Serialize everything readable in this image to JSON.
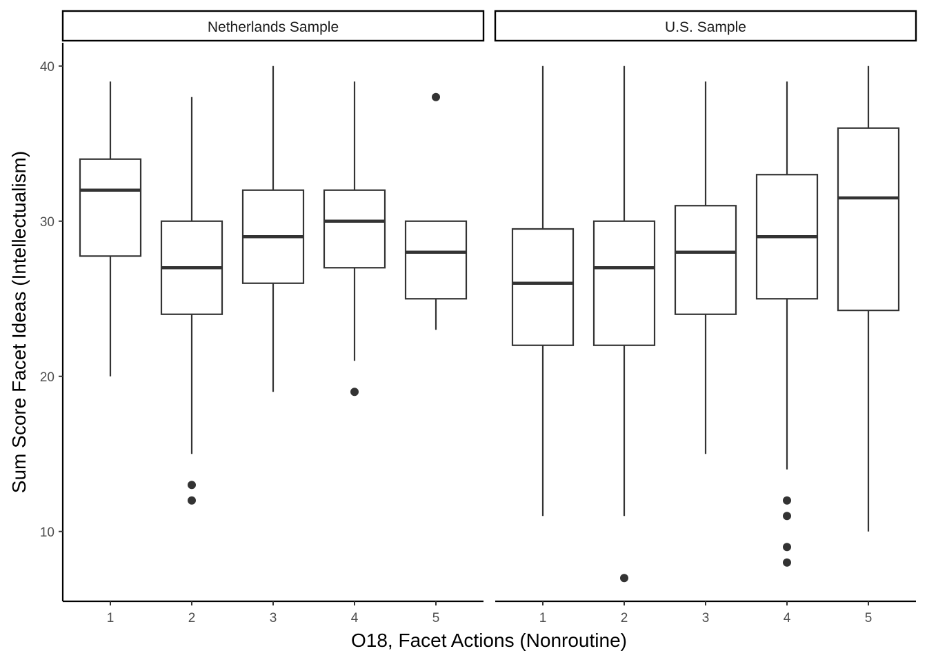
{
  "chart_data": {
    "type": "box",
    "xlabel": "O18, Facet Actions (Nonroutine)",
    "ylabel": "Sum Score Facet Ideas (Intellectualism)",
    "ylim": [
      5.5,
      41.5
    ],
    "yticks": [
      10,
      20,
      30,
      40
    ],
    "categories": [
      "1",
      "2",
      "3",
      "4",
      "5"
    ],
    "grid": false,
    "legend": "none",
    "colors": {
      "box_stroke": "#333333",
      "axis": "#000000",
      "strip_border": "#000000",
      "tick_text": "#4d4d4d"
    },
    "panels": [
      {
        "name": "Netherlands Sample",
        "boxes": [
          {
            "x": "1",
            "min": 20,
            "q1": 27.75,
            "median": 32,
            "q3": 34,
            "max": 39,
            "outliers": []
          },
          {
            "x": "2",
            "min": 15,
            "q1": 24,
            "median": 27,
            "q3": 30,
            "max": 38,
            "outliers": [
              13,
              12
            ]
          },
          {
            "x": "3",
            "min": 19,
            "q1": 26,
            "median": 29,
            "q3": 32,
            "max": 40,
            "outliers": []
          },
          {
            "x": "4",
            "min": 21,
            "q1": 27,
            "median": 30,
            "q3": 32,
            "max": 39,
            "outliers": [
              19
            ]
          },
          {
            "x": "5",
            "min": 23,
            "q1": 25,
            "median": 28,
            "q3": 30,
            "max": 30,
            "outliers": [
              38
            ]
          }
        ]
      },
      {
        "name": "U.S. Sample",
        "boxes": [
          {
            "x": "1",
            "min": 11,
            "q1": 22,
            "median": 26,
            "q3": 29.5,
            "max": 40,
            "outliers": []
          },
          {
            "x": "2",
            "min": 11,
            "q1": 22,
            "median": 27,
            "q3": 30,
            "max": 40,
            "outliers": [
              7
            ]
          },
          {
            "x": "3",
            "min": 15,
            "q1": 24,
            "median": 28,
            "q3": 31,
            "max": 39,
            "outliers": []
          },
          {
            "x": "4",
            "min": 14,
            "q1": 25,
            "median": 29,
            "q3": 33,
            "max": 39,
            "outliers": [
              12,
              11,
              9,
              8
            ]
          },
          {
            "x": "5",
            "min": 10,
            "q1": 24.25,
            "median": 31.5,
            "q3": 36,
            "max": 40,
            "outliers": []
          }
        ]
      }
    ]
  }
}
